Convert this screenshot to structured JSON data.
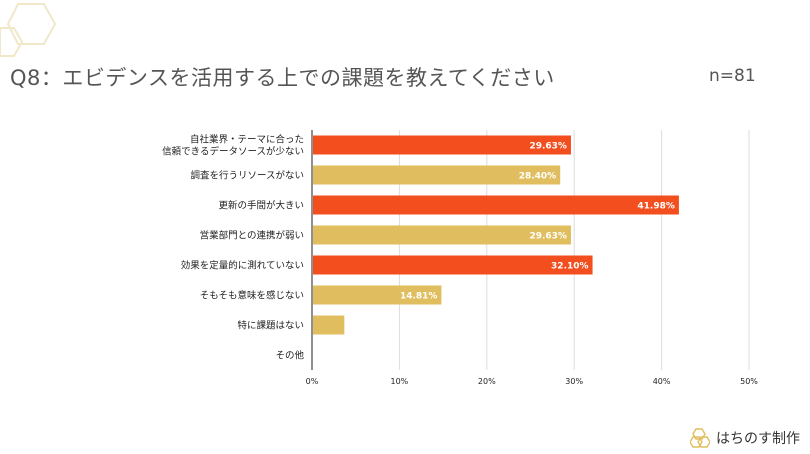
{
  "header": {
    "title": "Q8：エビデンスを活用する上での課題を教えてください",
    "sample_size": "n=81"
  },
  "brand": {
    "name": "はちのす制作",
    "logo_icon": "honeycomb-logo-icon"
  },
  "colors": {
    "accent_red": "#F24E1E",
    "accent_gold": "#E0BE5F",
    "grid": "#dddddd",
    "deco": "#F1E8C9"
  },
  "chart_data": {
    "type": "bar",
    "orientation": "horizontal",
    "title": "Q8：エビデンスを活用する上での課題を教えてください",
    "categories": [
      [
        "自社業界・テーマに合った",
        "信頼できるデータソースが少ない"
      ],
      [
        "調査を行うリソースがない"
      ],
      [
        "更新の手間が大きい"
      ],
      [
        "営業部門との連携が弱い"
      ],
      [
        "効果を定量的に測れていない"
      ],
      [
        "そもそも意味を感じない"
      ],
      [
        "特に課題はない"
      ],
      [
        "その他"
      ]
    ],
    "values": [
      29.63,
      28.4,
      41.98,
      29.63,
      32.1,
      14.81,
      3.7,
      0
    ],
    "data_labels": [
      "29.63%",
      "28.40%",
      "41.98%",
      "29.63%",
      "32.10%",
      "14.81%",
      "",
      ""
    ],
    "bar_colors": [
      "#F24E1E",
      "#E0BE5F",
      "#F24E1E",
      "#E0BE5F",
      "#F24E1E",
      "#E0BE5F",
      "#E0BE5F",
      "#E0BE5F"
    ],
    "xlim": [
      0,
      50
    ],
    "xticks": [
      "0%",
      "10%",
      "20%",
      "30%",
      "40%",
      "50%"
    ],
    "grid": true,
    "xlabel": "",
    "ylabel": ""
  }
}
